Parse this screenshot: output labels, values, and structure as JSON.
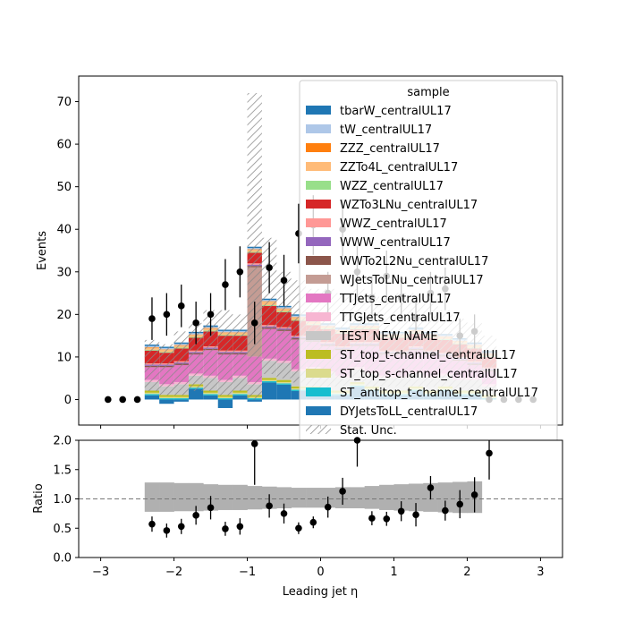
{
  "chart_data": [
    {
      "type": "bar",
      "subtype": "stacked-histogram",
      "xlim": [
        -3.3,
        3.3
      ],
      "ylim": [
        -6,
        76
      ],
      "ylabel": "Events",
      "yticks": [
        0,
        10,
        20,
        30,
        40,
        50,
        60,
        70
      ],
      "xticks": [
        -3,
        -2,
        -1,
        0,
        1,
        2,
        3
      ],
      "bin_edges": [
        -2.4,
        -2.2,
        -2.0,
        -1.8,
        -1.6,
        -1.4,
        -1.2,
        -1.0,
        -0.8,
        -0.6,
        -0.4,
        -0.2,
        0.0,
        0.2,
        0.4,
        0.6,
        0.8,
        1.0,
        1.2,
        1.4,
        1.6,
        1.8,
        2.0,
        2.2,
        2.4
      ],
      "legend": {
        "title": "sample",
        "placement": "upper-right",
        "entries": [
          {
            "name": "tbarW_centralUL17",
            "color": "#1f77b4"
          },
          {
            "name": "tW_centralUL17",
            "color": "#aec7e8"
          },
          {
            "name": "ZZZ_centralUL17",
            "color": "#ff7f0e"
          },
          {
            "name": "ZZTo4L_centralUL17",
            "color": "#ffbb78"
          },
          {
            "name": "WZZ_centralUL17",
            "color": "#98df8a"
          },
          {
            "name": "WZTo3LNu_centralUL17",
            "color": "#d62728"
          },
          {
            "name": "WWZ_centralUL17",
            "color": "#ff9896"
          },
          {
            "name": "WWW_centralUL17",
            "color": "#9467bd"
          },
          {
            "name": "WWTo2L2Nu_centralUL17",
            "color": "#8c564b"
          },
          {
            "name": "WJetsToLNu_centralUL17",
            "color": "#c49c94"
          },
          {
            "name": "TTJets_centralUL17",
            "color": "#e377c2"
          },
          {
            "name": "TTGJets_centralUL17",
            "color": "#f7b6d2"
          },
          {
            "name": "TEST NEW NAME",
            "color": "#c7c7c7"
          },
          {
            "name": "ST_top_t-channel_centralUL17",
            "color": "#bcbd22"
          },
          {
            "name": "ST_top_s-channel_centralUL17",
            "color": "#dbdb8d"
          },
          {
            "name": "ST_antitop_t-channel_centralUL17",
            "color": "#17becf"
          },
          {
            "name": "DYJetsToLL_centralUL17",
            "color": "#1f77b4"
          },
          {
            "name": "Stat. Unc.",
            "style": "hatch"
          }
        ]
      },
      "mc_stack": [
        {
          "name": "DYJetsToLL_centralUL17",
          "color": "#1f77b4",
          "values": [
            1,
            -1,
            -0.5,
            2.5,
            1,
            -2,
            1,
            -0.5,
            4,
            3.5,
            2,
            2,
            1,
            1,
            3,
            2,
            1,
            1,
            2,
            1,
            2,
            1,
            1,
            0
          ]
        },
        {
          "name": "ST_antitop_t-channel_centralUL17",
          "color": "#17becf",
          "values": [
            0.3,
            0.3,
            0.3,
            0.3,
            0.3,
            0.3,
            0.3,
            0.3,
            0.3,
            0.3,
            0.3,
            0.3,
            0.3,
            0.3,
            0.3,
            0.3,
            0.3,
            0.3,
            0.3,
            0.3,
            0.3,
            0.3,
            0.3,
            0.3
          ]
        },
        {
          "name": "ST_top_s-channel_centralUL17",
          "color": "#dbdb8d",
          "values": [
            0.3,
            0.3,
            0.3,
            0.3,
            0.3,
            0.3,
            0.3,
            0.3,
            0.3,
            0.3,
            0.3,
            0.3,
            0.3,
            0.3,
            0.3,
            0.3,
            0.3,
            0.3,
            0.3,
            0.3,
            0.3,
            0.3,
            0.3,
            0.3
          ]
        },
        {
          "name": "ST_top_t-channel_centralUL17",
          "color": "#bcbd22",
          "values": [
            0.5,
            0.5,
            0.5,
            0.5,
            0.5,
            0.5,
            0.5,
            0.5,
            0.5,
            0.5,
            0.5,
            0.5,
            0.5,
            0.5,
            0.5,
            0.5,
            0.5,
            0.5,
            0.5,
            0.5,
            0.5,
            0.5,
            0.5,
            0.5
          ]
        },
        {
          "name": "TEST NEW NAME",
          "color": "#c7c7c7",
          "values": [
            2,
            2,
            2.5,
            2,
            3,
            3,
            3,
            2.5,
            4,
            4,
            3.5,
            4,
            4,
            3,
            3,
            3,
            3,
            3,
            3,
            3,
            2.5,
            2.5,
            2.5,
            2
          ]
        },
        {
          "name": "TTGJets_centralUL17",
          "color": "#f7b6d2",
          "values": [
            0.5,
            0.5,
            0.5,
            0.5,
            0.5,
            0.5,
            0.5,
            0.5,
            0.5,
            0.5,
            0.5,
            0.5,
            0.5,
            0.5,
            0.5,
            0.5,
            0.5,
            0.5,
            0.5,
            0.5,
            0.5,
            0.5,
            0.5,
            0.5
          ]
        },
        {
          "name": "TTJets_centralUL17",
          "color": "#e377c2",
          "values": [
            3,
            4,
            4,
            4.5,
            6,
            6,
            5,
            6,
            7,
            7,
            7,
            6,
            6,
            6,
            5,
            6,
            5,
            5,
            5,
            5,
            4,
            4,
            3,
            3
          ]
        },
        {
          "name": "WJetsToLNu_centralUL17",
          "color": "#c49c94",
          "values": [
            0,
            0,
            0,
            0,
            0,
            0,
            0,
            21,
            0,
            0,
            0,
            0,
            0,
            0,
            0,
            0,
            0,
            0,
            0,
            0,
            0,
            0,
            0,
            0
          ]
        },
        {
          "name": "WWTo2L2Nu_centralUL17",
          "color": "#8c564b",
          "values": [
            0.3,
            0.3,
            0.3,
            0.3,
            0.3,
            0.3,
            0.3,
            0.3,
            0.3,
            0.3,
            0.3,
            0.3,
            0.3,
            0.3,
            0.3,
            0.3,
            0.3,
            0.3,
            0.3,
            0.3,
            0.3,
            0.3,
            0.3,
            0.3
          ]
        },
        {
          "name": "WWW_centralUL17",
          "color": "#9467bd",
          "values": [
            0.3,
            0.3,
            0.3,
            0.3,
            0.3,
            0.3,
            0.3,
            0.3,
            0.3,
            0.3,
            0.3,
            0.3,
            0.3,
            0.3,
            0.3,
            0.3,
            0.3,
            0.3,
            0.3,
            0.3,
            0.3,
            0.3,
            0.3,
            0.3
          ]
        },
        {
          "name": "WWZ_centralUL17",
          "color": "#ff9896",
          "values": [
            0.3,
            0.3,
            0.3,
            0.3,
            0.3,
            0.3,
            0.3,
            0.3,
            0.3,
            0.3,
            0.3,
            0.3,
            0.3,
            0.3,
            0.3,
            0.3,
            0.3,
            0.3,
            0.3,
            0.3,
            0.3,
            0.3,
            0.3,
            0.3
          ]
        },
        {
          "name": "WZTo3LNu_centralUL17",
          "color": "#d62728",
          "values": [
            3,
            2.5,
            3,
            3,
            3.5,
            3.5,
            3.5,
            2.5,
            4.5,
            3.5,
            3.5,
            3,
            3,
            3,
            3,
            3,
            3,
            3,
            3,
            3,
            3,
            3,
            3,
            2.5
          ]
        },
        {
          "name": "WZZ_centralUL17",
          "color": "#98df8a",
          "values": [
            0.2,
            0.2,
            0.2,
            0.2,
            0.2,
            0.2,
            0.2,
            0.2,
            0.2,
            0.2,
            0.2,
            0.2,
            0.2,
            0.2,
            0.2,
            0.2,
            0.2,
            0.2,
            0.2,
            0.2,
            0.2,
            0.2,
            0.2,
            0.2
          ]
        },
        {
          "name": "ZZTo4L_centralUL17",
          "color": "#ffbb78",
          "values": [
            0.5,
            0.5,
            0.5,
            0.5,
            0.5,
            0.5,
            0.5,
            0.5,
            0.8,
            0.6,
            0.6,
            0.5,
            0.5,
            0.5,
            0.5,
            0.5,
            0.5,
            0.5,
            0.5,
            0.5,
            0.5,
            0.5,
            0.5,
            0.5
          ]
        },
        {
          "name": "ZZZ_centralUL17",
          "color": "#ff7f0e",
          "values": [
            0.1,
            0.1,
            0.1,
            0.1,
            0.1,
            0.1,
            0.1,
            0.1,
            0.1,
            0.1,
            0.1,
            0.1,
            0.1,
            0.1,
            0.1,
            0.1,
            0.1,
            0.1,
            0.1,
            0.1,
            0.1,
            0.1,
            0.1,
            0.1
          ]
        },
        {
          "name": "tW_centralUL17",
          "color": "#aec7e8",
          "values": [
            0.3,
            0.3,
            0.3,
            0.3,
            0.3,
            0.3,
            0.3,
            0.3,
            0.3,
            0.3,
            0.3,
            0.3,
            0.3,
            0.3,
            0.3,
            0.3,
            0.3,
            0.3,
            0.3,
            0.3,
            0.3,
            0.3,
            0.3,
            0.3
          ]
        },
        {
          "name": "tbarW_centralUL17",
          "color": "#1f77b4",
          "values": [
            0.3,
            0.3,
            0.3,
            0.3,
            0.3,
            0.3,
            0.3,
            0.3,
            0.3,
            0.3,
            0.3,
            0.3,
            0.3,
            0.3,
            0.3,
            0.3,
            0.3,
            0.3,
            0.3,
            0.3,
            0.3,
            0.3,
            0.3,
            0.3
          ]
        }
      ],
      "stat_unc_band": {
        "name": "Stat. Unc.",
        "up": [
          14,
          13,
          16,
          18,
          21,
          21,
          20,
          72,
          38,
          30,
          28,
          26,
          26,
          25,
          26,
          25,
          24,
          25,
          25,
          24,
          21,
          19,
          18,
          15
        ],
        "down": [
          2,
          1,
          1,
          2,
          2,
          1,
          2,
          0,
          6,
          5,
          4,
          3,
          3,
          3,
          4,
          3,
          3,
          3,
          3,
          3,
          3,
          2,
          2,
          2
        ]
      },
      "data_points": {
        "x": [
          -2.9,
          -2.7,
          -2.5,
          -2.3,
          -2.1,
          -1.9,
          -1.7,
          -1.5,
          -1.3,
          -1.1,
          -0.9,
          -0.7,
          -0.5,
          -0.3,
          -0.1,
          0.1,
          0.3,
          0.5,
          0.7,
          0.9,
          1.1,
          1.3,
          1.5,
          1.7,
          1.9,
          2.1,
          2.3,
          2.5,
          2.7,
          2.9
        ],
        "y": [
          0,
          0,
          0,
          19,
          20,
          22,
          18,
          20,
          27,
          30,
          18,
          31,
          28,
          39,
          41,
          25,
          40,
          30,
          24,
          29,
          24,
          19,
          25,
          26,
          15,
          16,
          0,
          0,
          0,
          0
        ],
        "yerr": [
          0,
          0,
          0,
          5,
          5,
          5,
          5,
          5,
          6,
          6,
          5,
          6,
          6,
          7,
          7,
          5,
          7,
          6,
          5,
          6,
          5,
          5,
          5,
          5,
          4,
          4,
          0,
          0,
          0,
          0
        ]
      }
    },
    {
      "type": "scatter",
      "subtype": "ratio",
      "xlim": [
        -3.3,
        3.3
      ],
      "ylim": [
        0.0,
        2.0
      ],
      "ylabel": "Ratio",
      "xlabel": "Leading jet  η",
      "yticks": [
        "0.0",
        "0.5",
        "1.0",
        "1.5",
        "2.0"
      ],
      "xticks": [
        "−3",
        "−2",
        "−1",
        "0",
        "1",
        "2",
        "3"
      ],
      "reference_line": 1.0,
      "band": {
        "x_range": [
          -2.4,
          2.2
        ],
        "up": [
          1.28,
          1.28,
          1.27,
          1.27,
          1.25,
          1.24,
          1.24,
          1.22,
          1.21,
          1.2,
          1.19,
          1.19,
          1.19,
          1.2,
          1.2,
          1.22,
          1.24,
          1.25,
          1.26,
          1.27,
          1.28,
          1.29,
          1.3
        ],
        "down": [
          0.78,
          0.78,
          0.79,
          0.79,
          0.8,
          0.81,
          0.81,
          0.82,
          0.83,
          0.84,
          0.85,
          0.85,
          0.85,
          0.84,
          0.84,
          0.83,
          0.81,
          0.8,
          0.79,
          0.78,
          0.77,
          0.76,
          0.76
        ]
      },
      "points": {
        "x": [
          -2.3,
          -2.1,
          -1.9,
          -1.7,
          -1.5,
          -1.3,
          -1.1,
          -0.9,
          -0.7,
          -0.5,
          -0.3,
          -0.1,
          0.1,
          0.3,
          0.5,
          0.7,
          0.9,
          1.1,
          1.3,
          1.5,
          1.7,
          1.9,
          2.1,
          2.3
        ],
        "y": [
          0.57,
          0.46,
          0.53,
          0.72,
          0.85,
          0.49,
          0.53,
          1.94,
          0.88,
          0.75,
          0.5,
          0.6,
          0.86,
          1.13,
          2.0,
          0.67,
          0.66,
          0.79,
          0.73,
          1.19,
          0.8,
          0.91,
          1.07,
          1.78
        ],
        "yerr": [
          0.13,
          0.12,
          0.13,
          0.16,
          0.2,
          0.12,
          0.14,
          0.7,
          0.2,
          0.17,
          0.1,
          0.1,
          0.18,
          0.23,
          0.45,
          0.12,
          0.12,
          0.17,
          0.2,
          0.2,
          0.17,
          0.24,
          0.3,
          0.45
        ]
      }
    }
  ]
}
